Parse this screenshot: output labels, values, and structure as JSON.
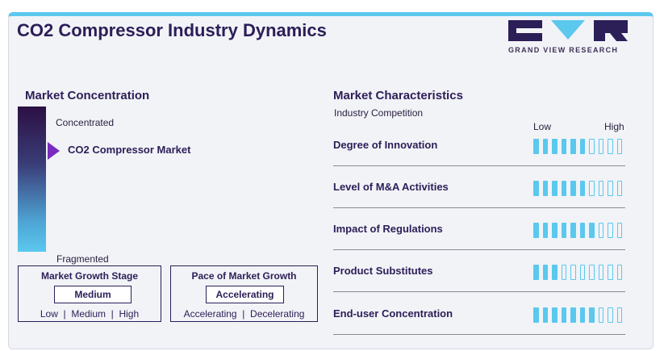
{
  "title": "CO2 Compressor Industry Dynamics",
  "logo": {
    "text": "GRAND VIEW RESEARCH",
    "colors": [
      "#2c1e57",
      "#5bc8ee"
    ]
  },
  "market_concentration": {
    "heading": "Market Concentration",
    "top_label": "Concentrated",
    "bottom_label": "Fragmented",
    "marker_label": "CO2 Compressor Market",
    "marker_level": 0.3
  },
  "growth_stage": {
    "title": "Market Growth Stage",
    "value": "Medium",
    "options": "Low  |  Medium  |  High"
  },
  "growth_pace": {
    "title": "Pace of Market Growth",
    "value": "Accelerating",
    "options": "Accelerating  |  Decelerating"
  },
  "market_characteristics": {
    "heading": "Market Characteristics",
    "subheading": "Industry Competition",
    "low_label": "Low",
    "high_label": "High",
    "bar_count": 10,
    "rows": [
      {
        "label": "Degree of Innovation",
        "level": 6
      },
      {
        "label": "Level of M&A Activities",
        "level": 6
      },
      {
        "label": "Impact of Regulations",
        "level": 7
      },
      {
        "label": "Product Substitutes",
        "level": 3
      },
      {
        "label": "End-user Concentration",
        "level": 7
      }
    ]
  },
  "colors": {
    "accent_blue": "#5bc8ee",
    "dark_purple": "#2c1e57",
    "marker_purple": "#7a2cbe"
  }
}
